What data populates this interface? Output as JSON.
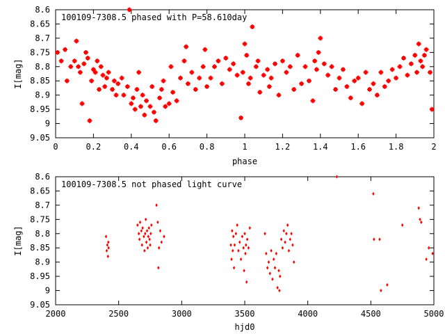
{
  "colors": {
    "points": "#ff0000",
    "axes": "#000000",
    "background": "#ffffff"
  },
  "chart_data": [
    {
      "type": "scatter",
      "title": "100109-7308.5 phased with P=58.610day",
      "xlabel": "phase",
      "ylabel": "I[mag]",
      "xlim": [
        0,
        2
      ],
      "ylim": [
        9.05,
        8.6
      ],
      "y_inverted": true,
      "xticks": [
        "0",
        "0.2",
        "0.4",
        "0.6",
        "0.8",
        "1",
        "1.2",
        "1.4",
        "1.6",
        "1.8",
        "2"
      ],
      "yticks": [
        "8.6",
        "8.65",
        "8.7",
        "8.75",
        "8.8",
        "8.85",
        "8.9",
        "8.95",
        "9",
        "9.05"
      ],
      "marker": "star",
      "series": [
        {
          "x": [
            0.01,
            0.03,
            0.05,
            0.06,
            0.08,
            0.1,
            0.11,
            0.12,
            0.13,
            0.14,
            0.15,
            0.16,
            0.17,
            0.18,
            0.19,
            0.2,
            0.21,
            0.22,
            0.23,
            0.24,
            0.25,
            0.26,
            0.27,
            0.28,
            0.3,
            0.31,
            0.32,
            0.33,
            0.35,
            0.36,
            0.38,
            0.39,
            0.4,
            0.41,
            0.42,
            0.43,
            0.44,
            0.45,
            0.46,
            0.47,
            0.48,
            0.5,
            0.51,
            0.52,
            0.53,
            0.55,
            0.56,
            0.57,
            0.58,
            0.6,
            0.61,
            0.62,
            0.64,
            0.66,
            0.68,
            0.69,
            0.7,
            0.72,
            0.74,
            0.76,
            0.78,
            0.79,
            0.8,
            0.82,
            0.84,
            0.86,
            0.88,
            0.9,
            0.92,
            0.94,
            0.96,
            0.98,
            0.99,
            1.0,
            1.01,
            1.02,
            1.03,
            1.04,
            1.06,
            1.07,
            1.08,
            1.1,
            1.12,
            1.13,
            1.14,
            1.16,
            1.18,
            1.2,
            1.22,
            1.24,
            1.26,
            1.28,
            1.3,
            1.32,
            1.34,
            1.36,
            1.37,
            1.38,
            1.39,
            1.4,
            1.42,
            1.44,
            1.46,
            1.48,
            1.5,
            1.52,
            1.54,
            1.56,
            1.58,
            1.6,
            1.62,
            1.64,
            1.66,
            1.68,
            1.7,
            1.72,
            1.74,
            1.76,
            1.78,
            1.8,
            1.82,
            1.84,
            1.86,
            1.88,
            1.9,
            1.91,
            1.92,
            1.93,
            1.94,
            1.95,
            1.96,
            1.98,
            1.99
          ],
          "y": [
            8.75,
            8.78,
            8.74,
            8.85,
            8.8,
            8.78,
            8.71,
            8.8,
            8.82,
            8.93,
            8.79,
            8.75,
            8.77,
            8.99,
            8.85,
            8.81,
            8.82,
            8.78,
            8.88,
            8.8,
            8.83,
            8.87,
            8.84,
            8.82,
            8.88,
            8.85,
            8.9,
            8.86,
            8.84,
            8.9,
            8.87,
            8.6,
            8.93,
            8.91,
            8.95,
            8.88,
            8.82,
            8.94,
            8.9,
            8.97,
            8.92,
            8.94,
            8.87,
            8.96,
            8.99,
            8.91,
            8.88,
            8.85,
            8.94,
            8.93,
            8.8,
            8.89,
            8.92,
            8.84,
            8.78,
            8.73,
            8.86,
            8.82,
            8.88,
            8.84,
            8.8,
            8.74,
            8.87,
            8.84,
            8.8,
            8.78,
            8.86,
            8.77,
            8.81,
            8.79,
            8.83,
            8.98,
            8.82,
            8.72,
            8.76,
            8.86,
            8.84,
            8.66,
            8.8,
            8.78,
            8.89,
            8.83,
            8.81,
            8.87,
            8.84,
            8.79,
            8.9,
            8.78,
            8.82,
            8.8,
            8.88,
            8.76,
            8.86,
            8.8,
            8.85,
            8.92,
            8.78,
            8.81,
            8.75,
            8.7,
            8.79,
            8.83,
            8.8,
            8.88,
            8.84,
            8.81,
            8.87,
            8.91,
            8.85,
            8.84,
            8.93,
            8.82,
            8.88,
            8.86,
            8.9,
            8.82,
            8.87,
            8.85,
            8.81,
            8.84,
            8.8,
            8.77,
            8.83,
            8.79,
            8.76,
            8.82,
            8.72,
            8.78,
            8.8,
            8.76,
            8.74,
            8.82,
            8.95
          ]
        }
      ]
    },
    {
      "type": "scatter",
      "title": "100109-7308.5 not phased light curve",
      "xlabel": "hjd0",
      "ylabel": "I[mag]",
      "xlim": [
        2000,
        5000
      ],
      "ylim": [
        9.05,
        8.6
      ],
      "y_inverted": true,
      "xticks": [
        "2000",
        "2500",
        "3000",
        "3500",
        "4000",
        "4500",
        "5000"
      ],
      "yticks": [
        "8.6",
        "8.65",
        "8.7",
        "8.75",
        "8.8",
        "8.85",
        "8.9",
        "8.95",
        "9",
        "9.05"
      ],
      "marker": "diamond",
      "series": [
        {
          "x": [
            2400,
            2405,
            2410,
            2415,
            2418,
            2420,
            2650,
            2660,
            2665,
            2670,
            2680,
            2685,
            2690,
            2700,
            2705,
            2710,
            2715,
            2720,
            2725,
            2730,
            2735,
            2740,
            2745,
            2750,
            2755,
            2760,
            2800,
            2810,
            2815,
            2820,
            2830,
            2840,
            2860,
            3390,
            3395,
            3400,
            3405,
            3410,
            3415,
            3420,
            3430,
            3440,
            3450,
            3460,
            3470,
            3480,
            3490,
            3495,
            3500,
            3505,
            3510,
            3515,
            3520,
            3530,
            3540,
            3660,
            3670,
            3680,
            3690,
            3700,
            3710,
            3720,
            3730,
            3740,
            3750,
            3760,
            3770,
            3775,
            3780,
            3790,
            3800,
            3810,
            3820,
            3830,
            3840,
            3850,
            3860,
            3870,
            3880,
            3890,
            4230,
            4520,
            4525,
            4570,
            4580,
            4630,
            4750,
            4880,
            4890,
            4900,
            4940,
            4960,
            4990
          ],
          "y": [
            8.81,
            8.86,
            8.84,
            8.88,
            8.83,
            8.85,
            8.77,
            8.8,
            8.82,
            8.76,
            8.79,
            8.84,
            8.78,
            8.81,
            8.86,
            8.8,
            8.75,
            8.83,
            8.79,
            8.85,
            8.81,
            8.78,
            8.82,
            8.84,
            8.8,
            8.77,
            8.7,
            8.76,
            8.92,
            8.85,
            8.79,
            8.83,
            8.81,
            8.84,
            8.89,
            8.79,
            8.86,
            8.81,
            8.92,
            8.84,
            8.8,
            8.77,
            8.86,
            8.83,
            8.89,
            8.81,
            8.85,
            8.93,
            8.8,
            8.87,
            8.84,
            8.97,
            8.82,
            8.85,
            8.78,
            8.8,
            8.87,
            8.92,
            8.9,
            8.94,
            8.86,
            8.96,
            8.89,
            8.92,
            8.87,
            8.99,
            8.93,
            9.0,
            8.95,
            8.82,
            8.85,
            8.79,
            8.83,
            8.8,
            8.77,
            8.86,
            8.82,
            8.8,
            8.84,
            8.9,
            8.6,
            8.66,
            8.82,
            8.82,
            9.0,
            8.98,
            8.77,
            8.71,
            8.75,
            8.76,
            8.89,
            8.85,
            8.87
          ]
        }
      ]
    }
  ]
}
